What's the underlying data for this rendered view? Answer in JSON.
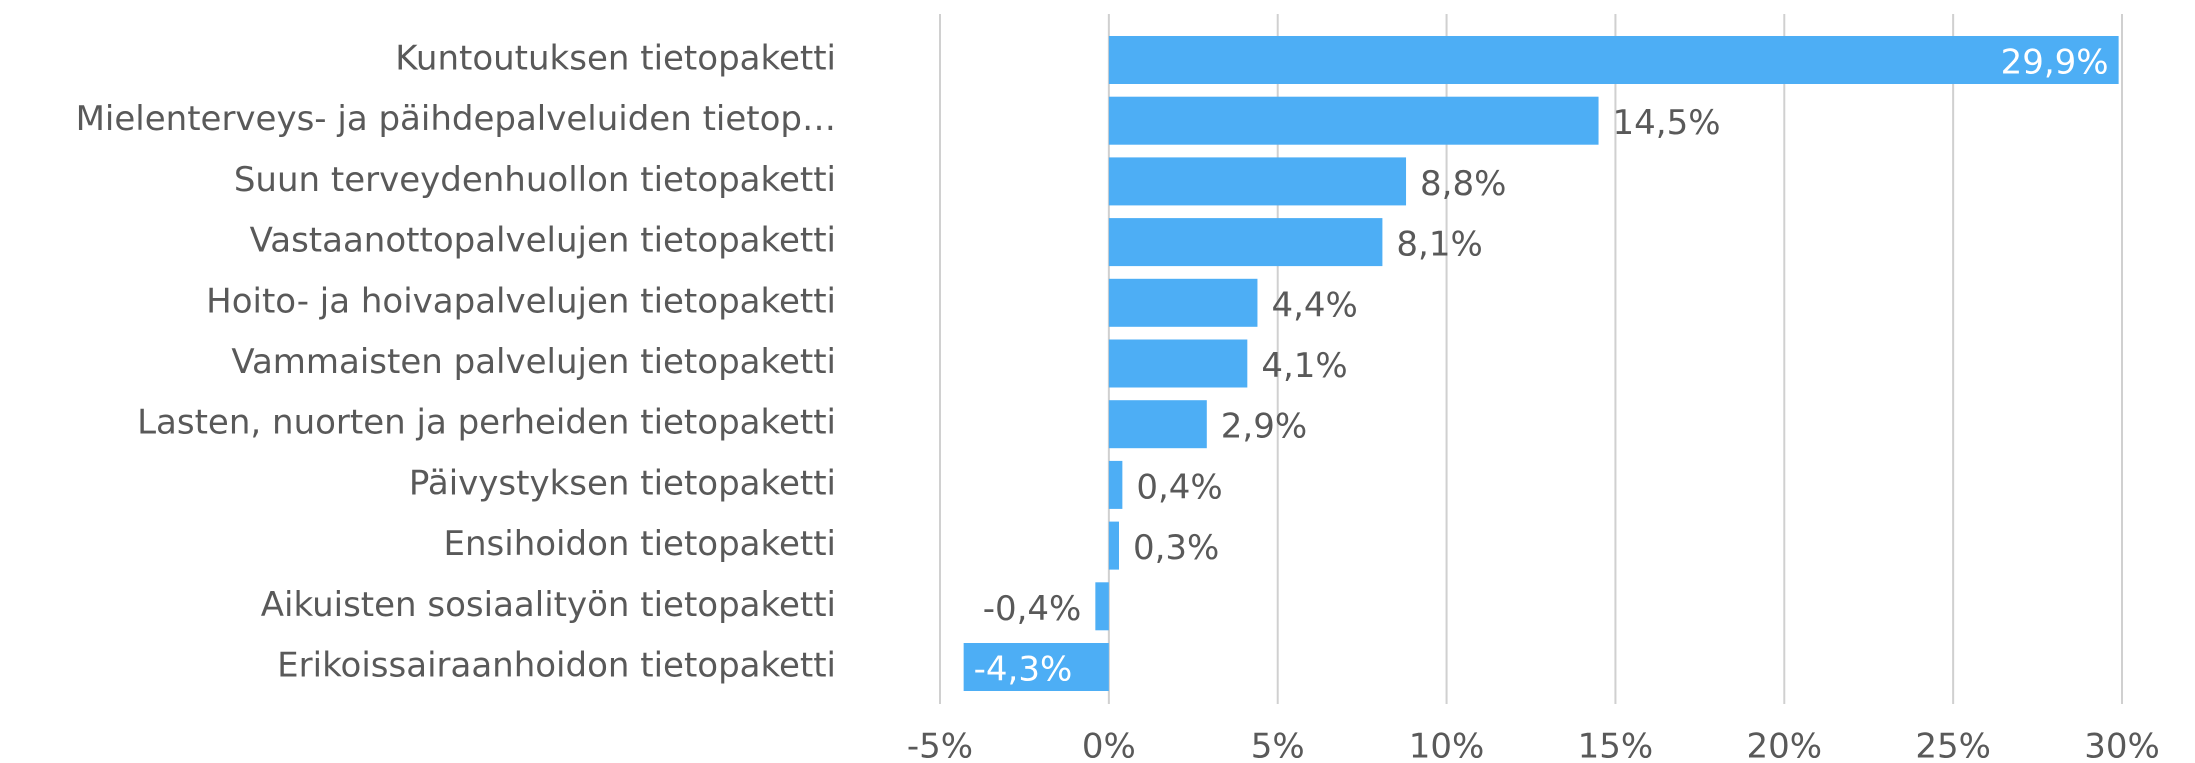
{
  "chart_data": {
    "type": "barh",
    "categories": [
      "Kuntoutuksen tietopaketti",
      "Mielenterveys- ja päihdepalveluiden tietop…",
      "Suun terveydenhuollon tietopaketti",
      "Vastaanottopalvelujen tietopaketti",
      "Hoito- ja hoivapalvelujen tietopaketti",
      "Vammaisten palvelujen tietopaketti",
      "Lasten, nuorten ja perheiden tietopaketti",
      "Päivystyksen tietopaketti",
      "Ensihoidon tietopaketti",
      "Aikuisten sosiaalityön tietopaketti",
      "Erikoissairaanhoidon tietopaketti"
    ],
    "values": [
      29.9,
      14.5,
      8.8,
      8.1,
      4.4,
      4.1,
      2.9,
      0.4,
      0.3,
      -0.4,
      -4.3
    ],
    "value_labels": [
      "29,9%",
      "14,5%",
      "8,8%",
      "8,1%",
      "4,4%",
      "4,1%",
      "2,9%",
      "0,4%",
      "0,3%",
      "-0,4%",
      "-4,3%"
    ],
    "color": "#4daef5",
    "xlim": [
      -5,
      30
    ],
    "xticks": [
      {
        "value": -5,
        "label": "-5%"
      },
      {
        "value": 0,
        "label": "0%"
      },
      {
        "value": 5,
        "label": "5%"
      },
      {
        "value": 10,
        "label": "10%"
      },
      {
        "value": 15,
        "label": "15%"
      },
      {
        "value": 20,
        "label": "20%"
      },
      {
        "value": 25,
        "label": "25%"
      },
      {
        "value": 30,
        "label": "30%"
      }
    ],
    "grid": true
  }
}
